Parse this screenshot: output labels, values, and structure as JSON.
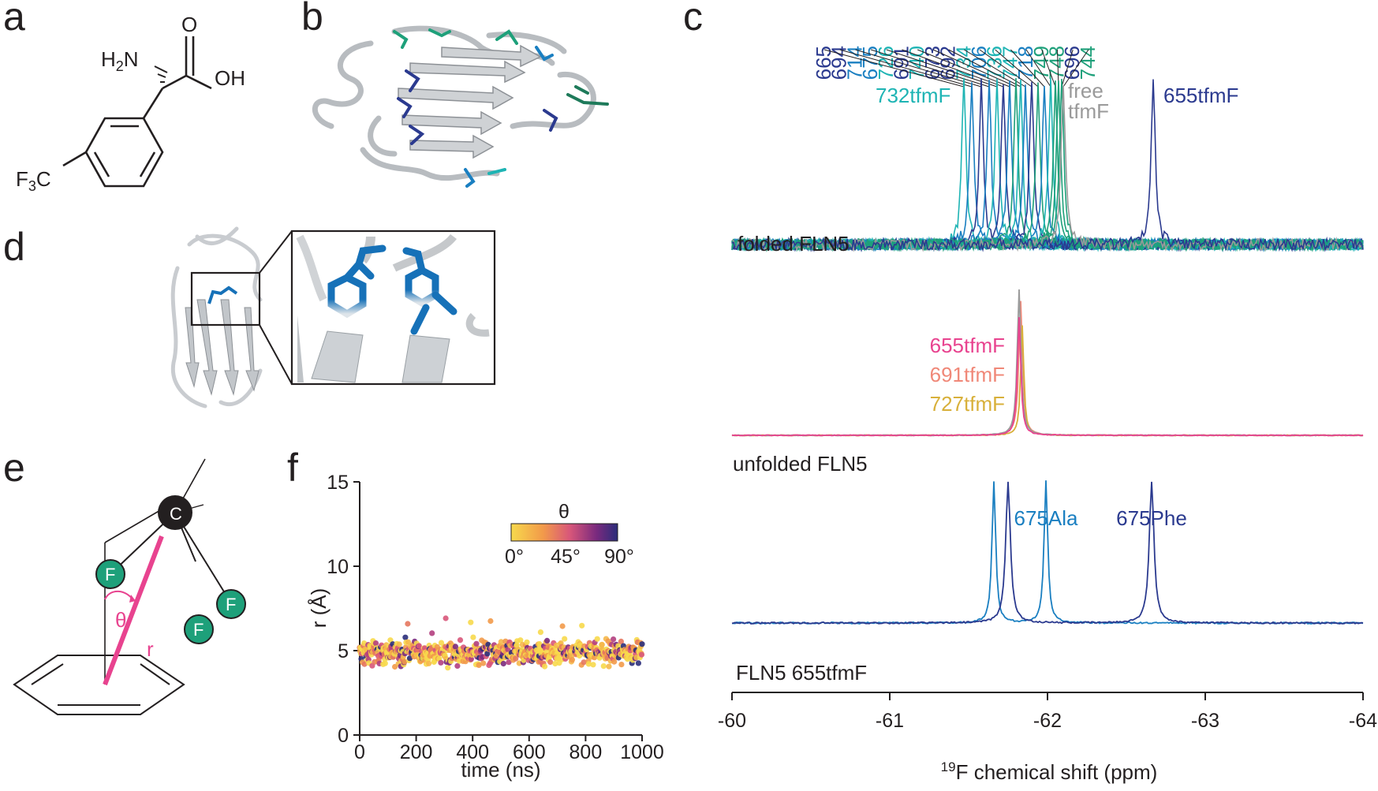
{
  "panels": {
    "a": "a",
    "b": "b",
    "c": "c",
    "d": "d",
    "e": "e",
    "f": "f"
  },
  "molecule": {
    "amine": "H2N",
    "acid_o": "O",
    "acid_oh": "OH",
    "cf3": "F3C"
  },
  "diagram_e": {
    "carbon": "C",
    "fluorine": "F",
    "theta": "θ",
    "r": "r"
  },
  "colors": {
    "navy": "#2b3a8f",
    "blue": "#1a7fc1",
    "teal": "#1eb4b4",
    "green": "#1ea07a",
    "grey": "#9a9a9a",
    "magenta": "#e8438f",
    "salmon": "#f08878",
    "gold": "#d8b03a"
  },
  "chart_data": [
    {
      "type": "line",
      "panel": "c",
      "xlabel": "19F chemical shift (ppm)",
      "xlim": [
        -60,
        -64
      ],
      "x_ticks": [
        "-60",
        "-61",
        "-62",
        "-63",
        "-64"
      ],
      "residue_labels": [
        "665",
        "694",
        "714",
        "675",
        "726",
        "691",
        "740",
        "673",
        "692",
        "734",
        "706",
        "736",
        "747",
        "718",
        "749",
        "748",
        "696",
        "744"
      ],
      "spectra": [
        {
          "label": "folded FLN5",
          "peak_labels": [
            {
              "text": "732tfmF",
              "x": -61.47
            },
            {
              "text": "free",
              "x": -62.1
            },
            {
              "text": "tfmF",
              "x": -62.1
            },
            {
              "text": "655tfmF",
              "x": -62.67
            }
          ],
          "peaks_ppm": [
            -61.47,
            -61.52,
            -61.58,
            -61.63,
            -61.68,
            -61.72,
            -61.76,
            -61.8,
            -61.83,
            -61.86,
            -61.9,
            -61.94,
            -61.98,
            -62.02,
            -62.05,
            -62.07,
            -62.09,
            -62.1,
            -62.67
          ]
        },
        {
          "label": "unfolded FLN5",
          "peak_labels": [
            {
              "text": "655tfmF",
              "x": -61.82
            },
            {
              "text": "691tfmF",
              "x": -61.82
            },
            {
              "text": "727tfmF",
              "x": -61.82
            }
          ],
          "peaks_ppm": [
            -61.82,
            -61.83,
            -61.84
          ]
        },
        {
          "label": "FLN5 655tfmF",
          "peak_labels": [
            {
              "text": "675Ala",
              "x": -61.99
            },
            {
              "text": "675Phe",
              "x": -62.66
            }
          ],
          "peaks_ppm": [
            -61.99,
            -62.66
          ]
        }
      ]
    },
    {
      "type": "scatter",
      "panel": "f",
      "xlabel": "time (ns)",
      "ylabel": "r (Å)",
      "xlim": [
        0,
        1000
      ],
      "ylim": [
        0,
        15
      ],
      "x_ticks": [
        "0",
        "200",
        "400",
        "600",
        "800",
        "1000"
      ],
      "y_ticks": [
        "0",
        "5",
        "10",
        "15"
      ],
      "colorbar": {
        "title": "θ",
        "ticks": [
          "0°",
          "45°",
          "90°"
        ],
        "range": [
          0,
          90
        ]
      },
      "mean_r": 4.9,
      "spread_r": 0.55,
      "n_points": 700
    }
  ]
}
